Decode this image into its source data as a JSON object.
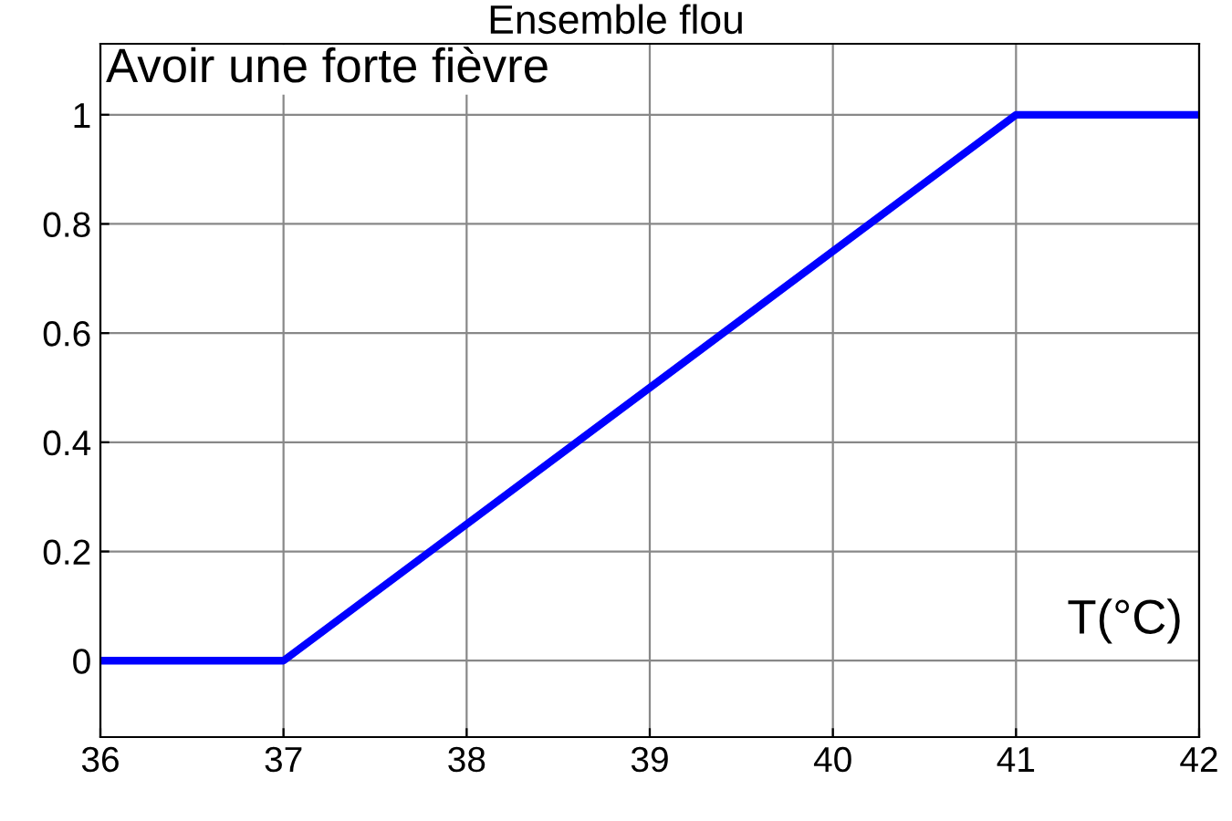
{
  "chart_data": {
    "type": "line",
    "title": "Ensemble flou",
    "x": [
      36,
      37,
      41,
      42
    ],
    "series": [
      {
        "color": "#0000ff",
        "values": [
          0,
          0,
          1,
          1
        ]
      }
    ],
    "xlim": [
      36,
      42
    ],
    "ylim": [
      -0.14,
      1.13
    ],
    "xticks": [
      36,
      37,
      38,
      39,
      40,
      41,
      42
    ],
    "yticks": [
      0,
      0.2,
      0.4,
      0.6,
      0.8,
      1
    ],
    "grid": true,
    "annotations": [
      "Avoir une forte fièvre",
      "T(°C)"
    ]
  }
}
